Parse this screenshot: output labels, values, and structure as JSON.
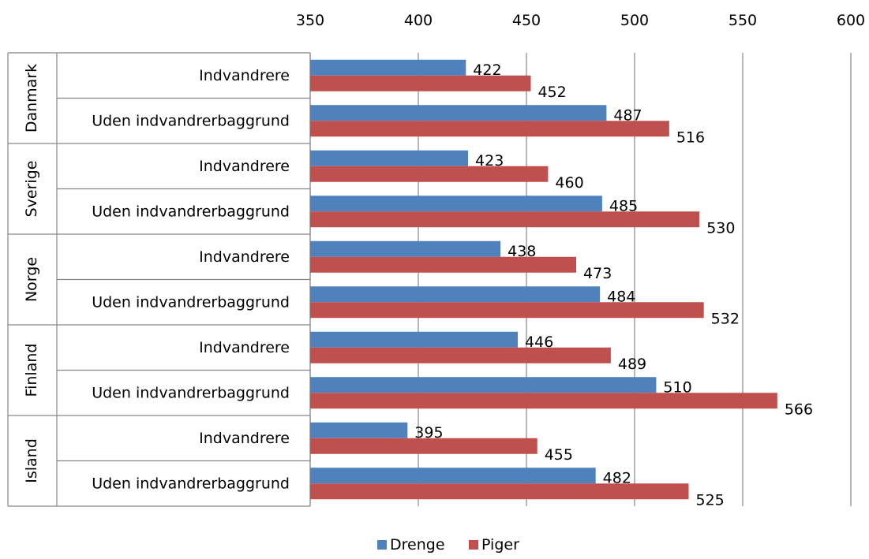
{
  "chart_data": {
    "type": "bar",
    "orientation": "horizontal",
    "xlim": [
      350,
      600
    ],
    "x_ticks": [
      "350",
      "400",
      "450",
      "500",
      "550",
      "600"
    ],
    "groups": [
      {
        "name": "Danmark",
        "categories": [
          "Indvandrere",
          "Uden indvandrerbaggrund"
        ]
      },
      {
        "name": "Sverige",
        "categories": [
          "Indvandrere",
          "Uden indvandrerbaggrund"
        ]
      },
      {
        "name": "Norge",
        "categories": [
          "Indvandrere",
          "Uden indvandrerbaggrund"
        ]
      },
      {
        "name": "Finland",
        "categories": [
          "Indvandrere",
          "Uden indvandrerbaggrund"
        ]
      },
      {
        "name": "Island",
        "categories": [
          "Indvandrere",
          "Uden indvandrerbaggrund"
        ]
      }
    ],
    "series": [
      {
        "name": "Drenge",
        "color": "#4F81BD",
        "values": [
          422,
          487,
          423,
          485,
          438,
          484,
          446,
          510,
          395,
          482
        ]
      },
      {
        "name": "Piger",
        "color": "#C0504D",
        "values": [
          452,
          516,
          460,
          530,
          473,
          532,
          489,
          566,
          455,
          525
        ]
      }
    ],
    "legend_position": "bottom",
    "grid": true
  }
}
